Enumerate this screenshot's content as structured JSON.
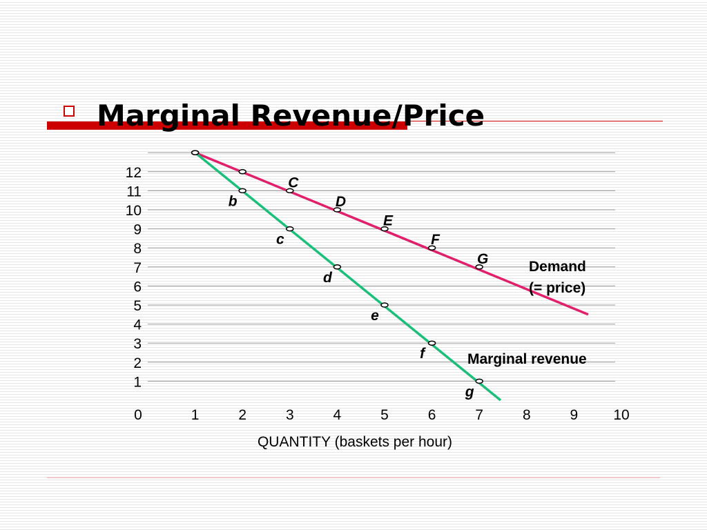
{
  "slide": {
    "title": "Marginal Revenue/Price"
  },
  "chart_data": {
    "type": "line",
    "xlabel": "QUANTITY (baskets per hour)",
    "ylabel": "",
    "x_ticks": [
      "0",
      "1",
      "2",
      "3",
      "4",
      "5",
      "6",
      "7",
      "8",
      "9",
      "10"
    ],
    "y_ticks": [
      "1",
      "2",
      "3",
      "4",
      "5",
      "6",
      "7",
      "8",
      "9",
      "10",
      "11",
      "12"
    ],
    "xlim": [
      0,
      10
    ],
    "ylim": [
      0,
      13
    ],
    "series": [
      {
        "name": "Demand (= price)",
        "label_lines": [
          "Demand",
          "(= price)"
        ],
        "color": "#e0206a",
        "points": [
          {
            "x": 1,
            "y": 13,
            "label": ""
          },
          {
            "x": 2,
            "y": 12,
            "label": ""
          },
          {
            "x": 3,
            "y": 11,
            "label": "C"
          },
          {
            "x": 4,
            "y": 10,
            "label": "D"
          },
          {
            "x": 5,
            "y": 9,
            "label": "E"
          },
          {
            "x": 6,
            "y": 8,
            "label": "F"
          },
          {
            "x": 7,
            "y": 7,
            "label": "G"
          }
        ],
        "line_end": {
          "x": 9.3,
          "y": 4.5
        }
      },
      {
        "name": "Marginal revenue",
        "label_lines": [
          "Marginal revenue"
        ],
        "color": "#1bbf7a",
        "points": [
          {
            "x": 1,
            "y": 13,
            "label": ""
          },
          {
            "x": 2,
            "y": 11,
            "label": "b"
          },
          {
            "x": 3,
            "y": 9,
            "label": "c"
          },
          {
            "x": 4,
            "y": 7,
            "label": "d"
          },
          {
            "x": 5,
            "y": 5,
            "label": "e"
          },
          {
            "x": 6,
            "y": 3,
            "label": "f"
          },
          {
            "x": 7,
            "y": 1,
            "label": "g"
          }
        ],
        "line_end": {
          "x": 7.45,
          "y": 0
        }
      }
    ]
  }
}
